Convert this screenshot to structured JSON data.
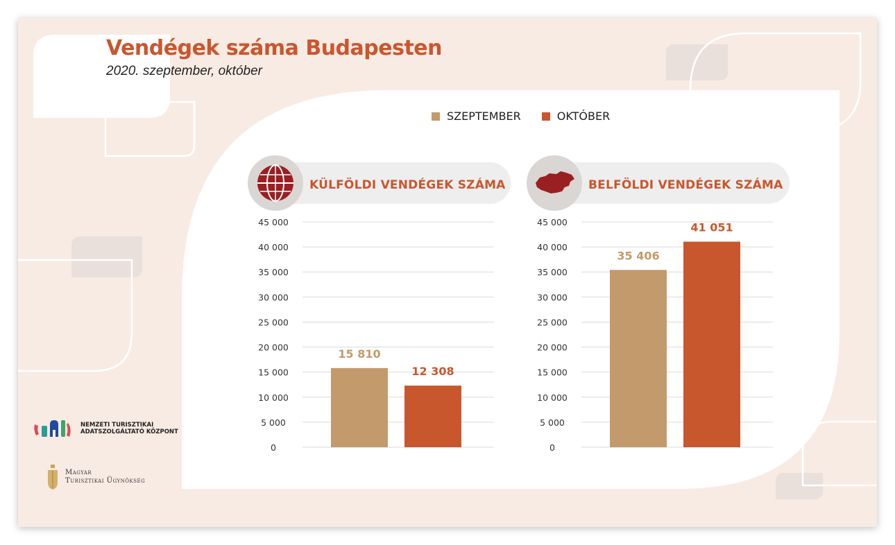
{
  "header": {
    "title": "Vendégek száma Budapesten",
    "subtitle": "2020. szeptember, október"
  },
  "legend": {
    "items": [
      {
        "label": "SZEPTEMBER",
        "color": "#c29a6c"
      },
      {
        "label": "OKTÓBER",
        "color": "#c9572e"
      }
    ]
  },
  "panels": {
    "foreign": {
      "label": "KÜLFÖLDI VENDÉGEK SZÁMA",
      "icon": "globe-icon"
    },
    "domestic": {
      "label": "BELFÖLDI VENDÉGEK SZÁMA",
      "icon": "hungary-map-icon"
    }
  },
  "logos": {
    "ntak_line1": "NEMZETI TURISZTIKAI",
    "ntak_line2": "ADATSZOLGÁLTATÓ KÖZPONT",
    "mtu_line1": "Magyar",
    "mtu_line2": "Turisztikai Ügynökség"
  },
  "chart_data": [
    {
      "type": "bar",
      "title": "KÜLFÖLDI VENDÉGEK SZÁMA",
      "categories": [
        "SZEPTEMBER",
        "OKTÓBER"
      ],
      "values": [
        15810,
        12308
      ],
      "value_labels": [
        "15 810",
        "12 308"
      ],
      "colors": [
        "#c29a6c",
        "#c9572e"
      ],
      "ylim": [
        0,
        45000
      ],
      "yticks": [
        "0",
        "5 000",
        "10 000",
        "15 000",
        "20 000",
        "25 000",
        "30 000",
        "35 000",
        "40 000",
        "45 000"
      ],
      "grid": true
    },
    {
      "type": "bar",
      "title": "BELFÖLDI VENDÉGEK SZÁMA",
      "categories": [
        "SZEPTEMBER",
        "OKTÓBER"
      ],
      "values": [
        35406,
        41051
      ],
      "value_labels": [
        "35 406",
        "41 051"
      ],
      "colors": [
        "#c29a6c",
        "#c9572e"
      ],
      "ylim": [
        0,
        45000
      ],
      "yticks": [
        "0",
        "5 000",
        "10 000",
        "15 000",
        "20 000",
        "25 000",
        "30 000",
        "35 000",
        "40 000",
        "45 000"
      ],
      "grid": true
    }
  ]
}
